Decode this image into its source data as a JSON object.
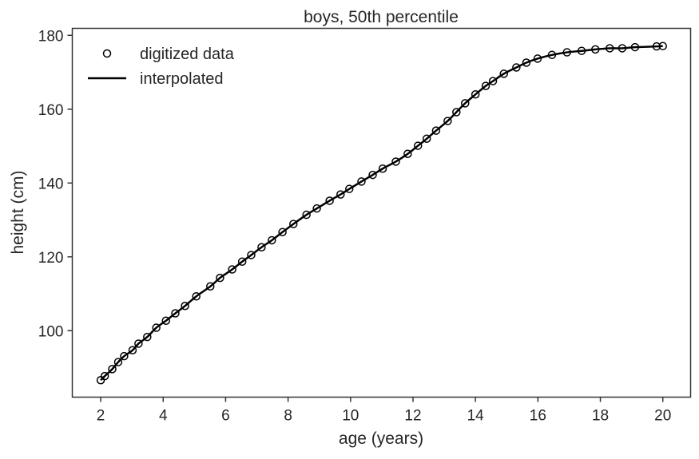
{
  "chart_data": {
    "type": "line",
    "title": "boys, 50th percentile",
    "xlabel": "age (years)",
    "ylabel": "height (cm)",
    "xlim": [
      1.09,
      20.89
    ],
    "ylim": [
      82.0,
      181.9
    ],
    "xticks": [
      2,
      4,
      6,
      8,
      10,
      12,
      14,
      16,
      18,
      20
    ],
    "yticks": [
      100,
      120,
      140,
      160,
      180
    ],
    "grid": false,
    "legend": "top-left",
    "series": [
      {
        "name": "digitized data",
        "style": "open-circle-markers",
        "color": "#000000",
        "x": [
          2.0,
          2.13,
          2.37,
          2.56,
          2.75,
          3.02,
          3.21,
          3.49,
          3.78,
          4.09,
          4.39,
          4.7,
          5.06,
          5.51,
          5.82,
          6.21,
          6.53,
          6.82,
          7.15,
          7.48,
          7.82,
          8.17,
          8.59,
          8.92,
          9.33,
          9.68,
          9.96,
          10.35,
          10.71,
          11.03,
          11.45,
          11.83,
          12.16,
          12.44,
          12.74,
          13.11,
          13.39,
          13.67,
          14.0,
          14.33,
          14.56,
          14.91,
          15.31,
          15.63,
          15.99,
          16.45,
          16.93,
          17.4,
          17.84,
          18.3,
          18.7,
          19.11,
          19.8,
          20.0
        ],
        "y": [
          86.6,
          87.7,
          89.6,
          91.5,
          93.1,
          94.7,
          96.5,
          98.3,
          100.8,
          102.7,
          104.7,
          106.7,
          109.3,
          112.0,
          114.3,
          116.6,
          118.7,
          120.5,
          122.6,
          124.5,
          126.7,
          128.9,
          131.4,
          133.1,
          135.2,
          136.9,
          138.4,
          140.4,
          142.2,
          143.9,
          145.8,
          147.9,
          150.1,
          152.0,
          154.2,
          156.8,
          159.2,
          161.6,
          164.0,
          166.3,
          167.6,
          169.6,
          171.3,
          172.6,
          173.7,
          174.7,
          175.4,
          175.8,
          176.2,
          176.5,
          176.5,
          176.8,
          177.0,
          177.1
        ]
      },
      {
        "name": "interpolated",
        "style": "solid-line",
        "color": "#000000"
      }
    ]
  }
}
